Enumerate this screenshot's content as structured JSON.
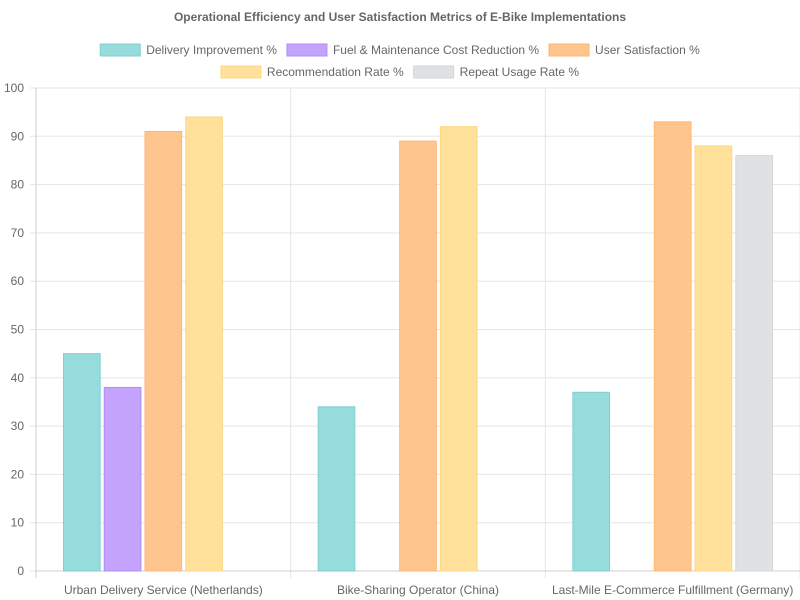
{
  "chart_data": {
    "type": "bar",
    "title": "Operational Efficiency and User Satisfaction Metrics of E-Bike Implementations",
    "categories": [
      "Urban Delivery Service (Netherlands)",
      "Bike-Sharing Operator (China)",
      "Last-Mile E-Commerce Fulfillment (Germany)"
    ],
    "series": [
      {
        "name": "Delivery Improvement %",
        "values": [
          45,
          34,
          37
        ],
        "color": "#96dcdc",
        "border": "#7fd0d0"
      },
      {
        "name": "Fuel & Maintenance Cost Reduction %",
        "values": [
          38,
          null,
          null
        ],
        "color": "#c4a3fc",
        "border": "#b18cf7"
      },
      {
        "name": "User Satisfaction %",
        "values": [
          91,
          89,
          93
        ],
        "color": "#ffc58f",
        "border": "#ffb574"
      },
      {
        "name": "Recommendation Rate %",
        "values": [
          94,
          92,
          88
        ],
        "color": "#ffe19c",
        "border": "#fdd784"
      },
      {
        "name": "Repeat Usage Rate %",
        "values": [
          null,
          null,
          86
        ],
        "color": "#e0e1e3",
        "border": "#d4d5d8"
      }
    ],
    "ylim": [
      0,
      100
    ],
    "yticks": [
      0,
      10,
      20,
      30,
      40,
      50,
      60,
      70,
      80,
      90,
      100
    ],
    "legend_position": "top",
    "grid": true
  }
}
